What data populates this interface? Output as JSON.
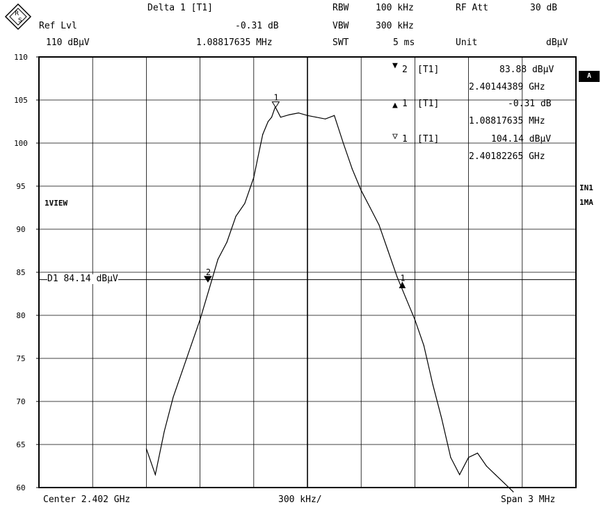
{
  "header": {
    "delta_label": "Delta 1 [T1]",
    "delta_value": "-0.31 dB",
    "delta_freq": "1.08817635 MHz",
    "ref_lvl_label": "Ref Lvl",
    "ref_lvl_value": "110 dBµV",
    "rbw_label": "RBW",
    "rbw_value": "100 kHz",
    "vbw_label": "VBW",
    "vbw_value": "300 kHz",
    "swt_label": "SWT",
    "swt_value": "5 ms",
    "rfatt_label": "RF Att",
    "rfatt_value": "30 dB",
    "unit_label": "Unit",
    "unit_value": "dBµV"
  },
  "markers_table": [
    {
      "symbol": "▼",
      "index": "2",
      "trace": "[T1]",
      "level": "83.88 dBµV",
      "freq": "2.40144389 GHz"
    },
    {
      "symbol": "▲",
      "index": "1",
      "trace": "[T1]",
      "level": "-0.31 dB",
      "freq": "1.08817635 MHz"
    },
    {
      "symbol": "▽",
      "index": "1",
      "trace": "[T1]",
      "level": "104.14 dBµV",
      "freq": "2.40182265 GHz"
    }
  ],
  "side_labels": {
    "badge": "A",
    "in1": "IN1",
    "ma1": "1MA",
    "view": "1VIEW",
    "d1_line": "D1 84.14 dBµV"
  },
  "footer": {
    "center": "Center 2.402 GHz",
    "div": "300 kHz/",
    "span": "Span 3 MHz"
  },
  "icons": {
    "logo": "rohde-schwarz-logo-icon"
  },
  "chart_data": {
    "type": "line",
    "title": "",
    "xlabel": "",
    "ylabel": "",
    "x_unit": "GHz",
    "xlim": [
      2.4005,
      2.4035
    ],
    "ylim": [
      60,
      110
    ],
    "yticks": [
      60,
      65,
      70,
      75,
      80,
      85,
      90,
      95,
      100,
      105,
      110
    ],
    "grid": true,
    "display_line_d1": 84.14,
    "markers": [
      {
        "label": "1",
        "x": 2.40182265,
        "y": 104.14,
        "symbol": "down-open-triangle"
      },
      {
        "label": "2",
        "x": 2.40144389,
        "y": 83.88,
        "symbol": "down-filled-triangle"
      },
      {
        "label": "1",
        "x": 2.40253,
        "y": 83.83,
        "symbol": "up-filled-triangle"
      }
    ],
    "series": [
      {
        "x": [
          2.4011,
          2.40115,
          2.4012,
          2.40125,
          2.4013,
          2.40135,
          2.4014,
          2.40145,
          2.4015,
          2.40155,
          2.4016,
          2.40165,
          2.4017,
          2.40172,
          2.40175,
          2.40178,
          2.4018,
          2.40182,
          2.40185,
          2.4019,
          2.40195,
          2.402,
          2.40205,
          2.4021,
          2.40215,
          2.4022,
          2.40225,
          2.4023,
          2.40235,
          2.4024,
          2.40245,
          2.4025,
          2.40255,
          2.4026,
          2.40265,
          2.4027,
          2.40275,
          2.4028,
          2.40285,
          2.4029,
          2.40295,
          2.403,
          2.40305,
          2.4031,
          2.40315
        ],
        "y": [
          64.5,
          61.5,
          66.5,
          70.5,
          73.5,
          76.5,
          79.5,
          83.0,
          86.5,
          88.5,
          91.5,
          93.0,
          96.0,
          98.0,
          101.0,
          102.5,
          103.0,
          104.2,
          103.0,
          103.3,
          103.5,
          103.2,
          103.0,
          102.8,
          103.2,
          100.0,
          97.0,
          94.5,
          92.5,
          90.5,
          87.5,
          84.5,
          82.0,
          79.5,
          76.5,
          72.0,
          68.0,
          63.5,
          61.5,
          63.5,
          64.0,
          62.5,
          61.5,
          60.5,
          59.5
        ]
      }
    ]
  }
}
